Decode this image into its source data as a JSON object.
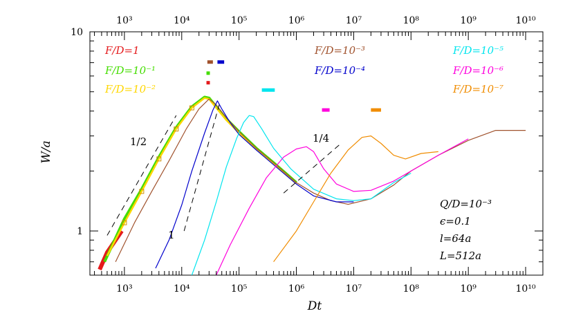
{
  "chart_data": {
    "type": "line",
    "xlabel": "Dt",
    "ylabel": "W/a",
    "xscale": "log",
    "yscale": "log",
    "xlim": [
      250,
      20000000000
    ],
    "ylim": [
      0.6,
      10
    ],
    "x_ticks_bottom": [
      "10³",
      "10⁴",
      "10⁵",
      "10⁶",
      "10⁷",
      "10⁸",
      "10⁹",
      "10¹⁰"
    ],
    "x_ticks_top": [
      "10³",
      "10⁴",
      "10⁵",
      "10⁶",
      "10⁷",
      "10⁸",
      "10⁹",
      "10¹⁰"
    ],
    "y_ticks": [
      "1",
      "10"
    ],
    "series": [
      {
        "name": "F/D=1",
        "color": "#e41a1c",
        "points": [
          [
            370,
            0.64
          ],
          [
            500,
            0.78
          ],
          [
            700,
            0.9
          ],
          [
            900,
            1.0
          ]
        ]
      },
      {
        "name": "F/D=10⁻¹",
        "color": "#44dd00",
        "points": [
          [
            450,
            0.7
          ],
          [
            1000,
            1.15
          ],
          [
            2000,
            1.62
          ],
          [
            4000,
            2.35
          ],
          [
            8000,
            3.3
          ],
          [
            15000,
            4.2
          ],
          [
            25000,
            4.7
          ],
          [
            30000,
            4.65
          ],
          [
            40000,
            4.2
          ],
          [
            60000,
            3.65
          ],
          [
            100000,
            3.15
          ],
          [
            200000,
            2.6
          ],
          [
            400000,
            2.2
          ],
          [
            800000,
            1.85
          ],
          [
            1000000,
            1.75
          ]
        ]
      },
      {
        "name": "F/D=10⁻²",
        "color": "#ffd700",
        "points": [
          [
            500,
            0.75
          ],
          [
            1000,
            1.1
          ],
          [
            2000,
            1.58
          ],
          [
            4000,
            2.3
          ],
          [
            8000,
            3.25
          ],
          [
            15000,
            4.15
          ],
          [
            25000,
            4.65
          ],
          [
            30000,
            4.6
          ],
          [
            40000,
            4.15
          ],
          [
            60000,
            3.6
          ],
          [
            100000,
            3.1
          ],
          [
            200000,
            2.58
          ],
          [
            400000,
            2.18
          ],
          [
            800000,
            1.83
          ],
          [
            1000000,
            1.73
          ]
        ]
      },
      {
        "name": "F/D=10⁻³",
        "color": "#a0522d",
        "points": [
          [
            700,
            0.7
          ],
          [
            1500,
            1.1
          ],
          [
            3000,
            1.58
          ],
          [
            6000,
            2.25
          ],
          [
            12000,
            3.25
          ],
          [
            20000,
            4.1
          ],
          [
            30000,
            4.6
          ],
          [
            40000,
            4.3
          ],
          [
            60000,
            3.7
          ],
          [
            100000,
            3.15
          ],
          [
            200000,
            2.6
          ],
          [
            400000,
            2.2
          ],
          [
            1000000,
            1.75
          ],
          [
            2000000,
            1.55
          ],
          [
            4000000,
            1.42
          ],
          [
            8000000,
            1.36
          ],
          [
            20000000,
            1.45
          ],
          [
            50000000,
            1.7
          ],
          [
            100000000,
            2.0
          ],
          [
            300000000,
            2.4
          ],
          [
            1000000000,
            2.85
          ],
          [
            3000000000,
            3.2
          ],
          [
            10000000000,
            3.2
          ]
        ]
      },
      {
        "name": "F/D=10⁻⁴",
        "color": "#0000cc",
        "points": [
          [
            3500,
            0.65
          ],
          [
            6000,
            0.9
          ],
          [
            10000,
            1.35
          ],
          [
            15000,
            2.0
          ],
          [
            25000,
            3.1
          ],
          [
            35000,
            4.05
          ],
          [
            42000,
            4.5
          ],
          [
            50000,
            4.1
          ],
          [
            70000,
            3.5
          ],
          [
            100000,
            3.05
          ],
          [
            200000,
            2.55
          ],
          [
            400000,
            2.15
          ],
          [
            1000000,
            1.72
          ],
          [
            2000000,
            1.5
          ],
          [
            5000000,
            1.4
          ],
          [
            10000000,
            1.4
          ]
        ]
      },
      {
        "name": "F/D=10⁻⁵",
        "color": "#00e5ee",
        "points": [
          [
            15000,
            0.6
          ],
          [
            25000,
            0.9
          ],
          [
            40000,
            1.4
          ],
          [
            60000,
            2.1
          ],
          [
            90000,
            2.9
          ],
          [
            120000,
            3.5
          ],
          [
            150000,
            3.8
          ],
          [
            180000,
            3.75
          ],
          [
            250000,
            3.25
          ],
          [
            400000,
            2.6
          ],
          [
            800000,
            2.05
          ],
          [
            2000000,
            1.62
          ],
          [
            5000000,
            1.45
          ],
          [
            10000000,
            1.42
          ],
          [
            20000000,
            1.45
          ],
          [
            50000000,
            1.75
          ],
          [
            100000000,
            1.95
          ]
        ]
      },
      {
        "name": "F/D=10⁻⁶",
        "color": "#ff00dd",
        "points": [
          [
            40000,
            0.6
          ],
          [
            70000,
            0.85
          ],
          [
            150000,
            1.3
          ],
          [
            300000,
            1.85
          ],
          [
            600000,
            2.35
          ],
          [
            1000000,
            2.58
          ],
          [
            1500000,
            2.65
          ],
          [
            2000000,
            2.5
          ],
          [
            3000000,
            2.05
          ],
          [
            5000000,
            1.72
          ],
          [
            10000000,
            1.58
          ],
          [
            20000000,
            1.6
          ],
          [
            50000000,
            1.78
          ],
          [
            100000000,
            2.0
          ],
          [
            300000000,
            2.4
          ],
          [
            1000000000,
            2.9
          ]
        ]
      },
      {
        "name": "F/D=10⁻⁷",
        "color": "#f08c00",
        "points": [
          [
            400000,
            0.7
          ],
          [
            1000000,
            1.0
          ],
          [
            2000000,
            1.4
          ],
          [
            4000000,
            1.95
          ],
          [
            8000000,
            2.55
          ],
          [
            14000000,
            2.95
          ],
          [
            20000000,
            3.0
          ],
          [
            30000000,
            2.75
          ],
          [
            50000000,
            2.4
          ],
          [
            80000000,
            2.3
          ],
          [
            150000000,
            2.45
          ],
          [
            300000000,
            2.5
          ]
        ]
      }
    ],
    "color_markers": [
      {
        "series": "F/D=1",
        "x_range": [
          27000,
          31000
        ],
        "y": 5.55,
        "color": "#e41a1c"
      },
      {
        "series": "F/D=10⁻¹",
        "x_range": [
          27000,
          31000
        ],
        "y": 6.2,
        "color": "#44dd00"
      },
      {
        "series": "F/D=10⁻³",
        "x_range": [
          28000,
          35000
        ],
        "y": 7.05,
        "color": "#a0522d"
      },
      {
        "series": "F/D=10⁻⁴",
        "x_range": [
          42000,
          55000
        ],
        "y": 7.05,
        "color": "#0000cc"
      },
      {
        "series": "F/D=10⁻⁵",
        "x_range": [
          250000,
          420000
        ],
        "y": 5.1,
        "color": "#00e5ee"
      },
      {
        "series": "F/D=10⁻⁶",
        "x_range": [
          2800000,
          3800000
        ],
        "y": 4.05,
        "color": "#ff00dd"
      },
      {
        "series": "F/D=10⁻⁷",
        "x_range": [
          20000000,
          30000000
        ],
        "y": 4.05,
        "color": "#f08c00"
      }
    ],
    "slope_lines": [
      {
        "label": "1/2",
        "slope": 0.5,
        "from": [
          500,
          0.95
        ],
        "to": [
          8000,
          3.8
        ]
      },
      {
        "label": "1",
        "slope": 1,
        "from": [
          11000,
          1.0
        ],
        "to": [
          45000,
          4.3
        ]
      },
      {
        "label": "1/4",
        "slope": 0.25,
        "from": [
          600000,
          1.55
        ],
        "to": [
          6000000,
          2.75
        ]
      }
    ],
    "legend_placement": "top",
    "grid": false
  },
  "annotations": {
    "slope_half": "1/2",
    "slope_one": "1",
    "slope_quarter": "1/4",
    "params": [
      "Q/D=10⁻³",
      "ϵ=0.1",
      "l=64a",
      "L=512a"
    ]
  }
}
